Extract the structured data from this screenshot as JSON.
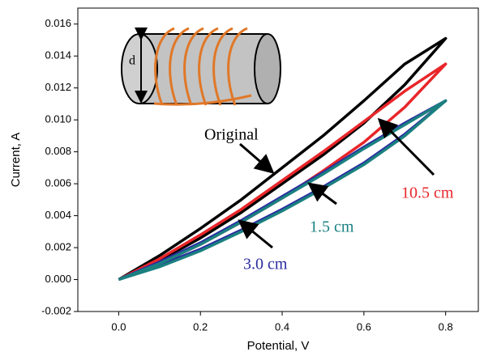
{
  "chart_data": {
    "type": "line",
    "xlabel": "Potential, V",
    "ylabel": "Current, A",
    "x": [
      0,
      0.1,
      0.2,
      0.3,
      0.4,
      0.5,
      0.6,
      0.7,
      0.8,
      0.7,
      0.6,
      0.5,
      0.4,
      0.3,
      0.2,
      0.1,
      0
    ],
    "series": [
      {
        "name": "Original",
        "color": "#000000",
        "values": [
          0,
          0.0012,
          0.0026,
          0.0042,
          0.006,
          0.0078,
          0.0098,
          0.0122,
          0.0151,
          0.0135,
          0.0112,
          0.009,
          0.007,
          0.005,
          0.0032,
          0.0015,
          0
        ]
      },
      {
        "name": "10.5 cm",
        "color": "#e8262a",
        "values": [
          0,
          0.001,
          0.0022,
          0.0036,
          0.0051,
          0.0068,
          0.0086,
          0.0108,
          0.0135,
          0.0118,
          0.0099,
          0.008,
          0.0062,
          0.0044,
          0.0028,
          0.0013,
          0
        ]
      },
      {
        "name": "3.0 cm",
        "color": "#2a2aa0",
        "values": [
          0,
          0.0009,
          0.0019,
          0.0031,
          0.0044,
          0.0058,
          0.0073,
          0.0091,
          0.0112,
          0.0098,
          0.0083,
          0.0067,
          0.0052,
          0.0037,
          0.0023,
          0.0011,
          0
        ]
      },
      {
        "name": "1.5 cm",
        "color": "#1a8080",
        "values": [
          0,
          0.0008,
          0.0018,
          0.003,
          0.0043,
          0.0057,
          0.0072,
          0.009,
          0.0112,
          0.0097,
          0.0082,
          0.0066,
          0.0051,
          0.0036,
          0.0022,
          0.001,
          0
        ]
      }
    ],
    "annotations": [
      {
        "text": "Original",
        "color": "#000000"
      },
      {
        "text": "10.5 cm",
        "color": "#e8262a"
      },
      {
        "text": "1.5 cm",
        "color": "#1a8080"
      },
      {
        "text": "3.0 cm",
        "color": "#2a2aa0"
      },
      {
        "text": "d",
        "color": "#000000"
      }
    ],
    "xlim": [
      -0.1,
      0.88
    ],
    "ylim": [
      -0.002,
      0.017
    ],
    "xticks": [
      {
        "value": 0,
        "label": "0.0"
      },
      0.2,
      0.4,
      0.6,
      0.8
    ],
    "yticks": [
      -0.002,
      {
        "value": 0,
        "label": "0.000"
      },
      0.002,
      0.004,
      0.006,
      0.008,
      {
        "value": 0.01,
        "label": "0.010"
      },
      0.012,
      0.014,
      0.016
    ]
  }
}
